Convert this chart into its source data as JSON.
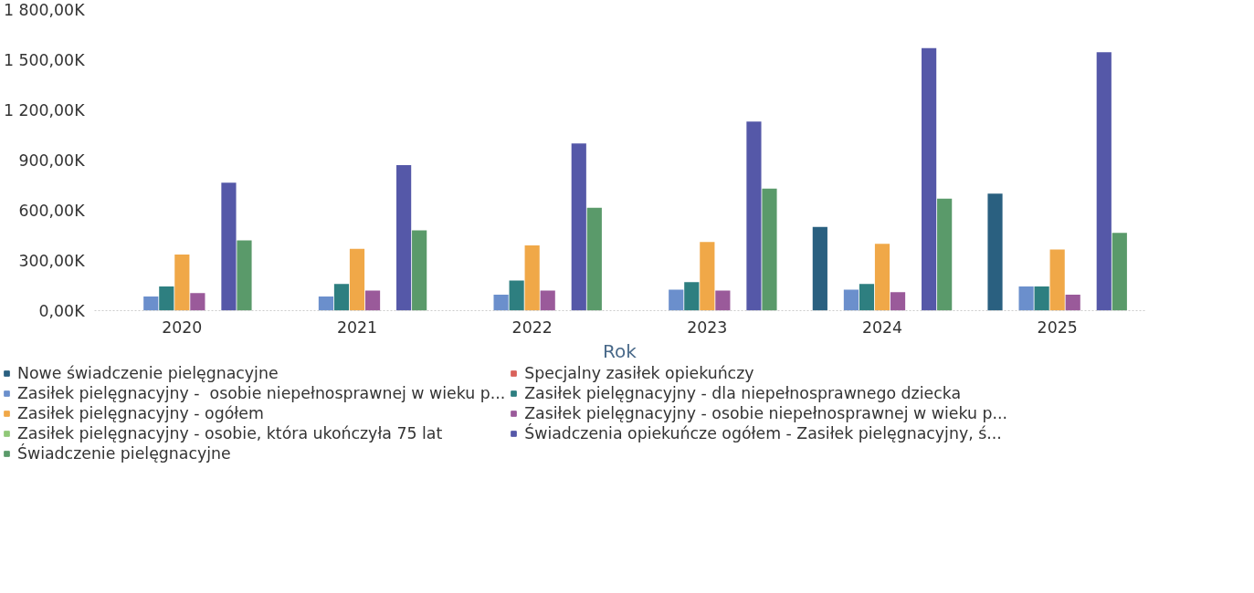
{
  "chart_data": {
    "type": "bar",
    "xlabel": "Rok",
    "categories": [
      "2020",
      "2021",
      "2022",
      "2023",
      "2024",
      "2025"
    ],
    "ylim": [
      0,
      1800
    ],
    "yticks": [
      {
        "value": 0,
        "label": "0,00K"
      },
      {
        "value": 300,
        "label": "300,00K"
      },
      {
        "value": 600,
        "label": "600,00K"
      },
      {
        "value": 900,
        "label": "900,00K"
      },
      {
        "value": 1200,
        "label": "1 200,00K"
      },
      {
        "value": 1500,
        "label": "1 500,00K"
      },
      {
        "value": 1800,
        "label": "1 800,00K"
      }
    ],
    "grid": false,
    "legend": "bottom",
    "series": [
      {
        "name": "Nowe świadczenie pielęgnacyjne",
        "color": "#2a6080",
        "values": [
          0,
          0,
          0,
          0,
          500,
          700
        ]
      },
      {
        "name": "Specjalny zasiłek opiekuńczy",
        "color": "#d9625a",
        "values": [
          0,
          0,
          0,
          0,
          0,
          0
        ]
      },
      {
        "name": "Zasiłek pielęgnacyjny -  osobie niepełnosprawnej w wieku p...",
        "color": "#6b8fcc",
        "values": [
          85,
          85,
          95,
          125,
          125,
          145
        ]
      },
      {
        "name": "Zasiłek pielęgnacyjny - dla niepełnosprawnego dziecka",
        "color": "#2e7f80",
        "values": [
          145,
          160,
          180,
          170,
          160,
          145
        ]
      },
      {
        "name": "Zasiłek pielęgnacyjny - ogółem",
        "color": "#f0a848",
        "values": [
          335,
          370,
          390,
          410,
          400,
          365
        ]
      },
      {
        "name": "Zasiłek pielęgnacyjny - osobie niepełnosprawnej w wieku p...",
        "color": "#9a5a9a",
        "values": [
          105,
          120,
          120,
          120,
          110,
          95
        ]
      },
      {
        "name": "Zasiłek pielęgnacyjny - osobie, która ukończyła 75 lat",
        "color": "#90c878",
        "values": [
          0,
          0,
          0,
          0,
          0,
          0
        ]
      },
      {
        "name": "Świadczenia opiekuńcze ogółem - Zasiłek pielęgnacyjny, ś...",
        "color": "#5558a8",
        "values": [
          765,
          870,
          1000,
          1130,
          1570,
          1545
        ]
      },
      {
        "name": "Świadczenie pielęgnacyjne",
        "color": "#5a9a6a",
        "values": [
          420,
          480,
          615,
          730,
          670,
          465
        ]
      }
    ]
  }
}
